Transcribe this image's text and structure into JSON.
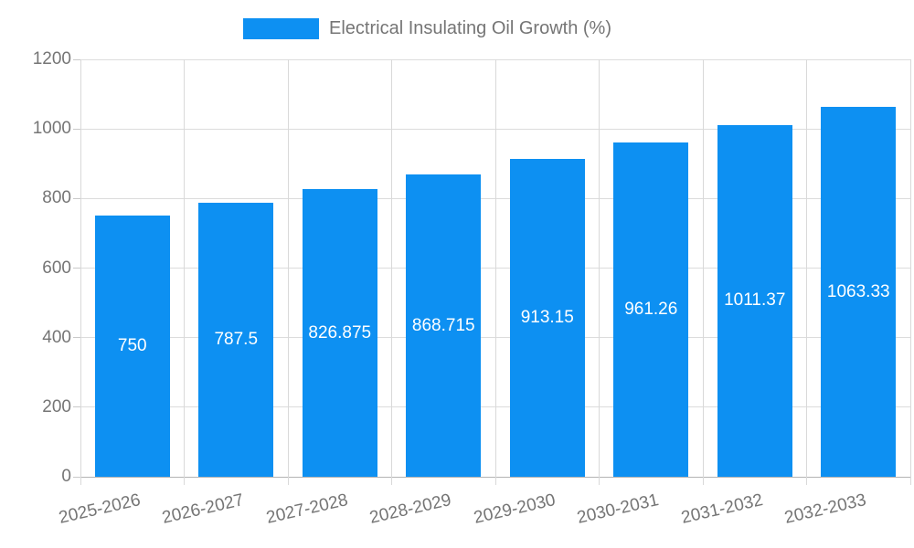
{
  "chart_data": {
    "type": "bar",
    "title": "",
    "legend": {
      "label": "Electrical Insulating Oil Growth (%)",
      "position": "top"
    },
    "categories": [
      "2025-2026",
      "2026-2027",
      "2027-2028",
      "2028-2029",
      "2029-2030",
      "2030-2031",
      "2031-2032",
      "2032-2033"
    ],
    "values": [
      750,
      787.5,
      826.875,
      868.715,
      913.15,
      961.26,
      1011.37,
      1063.33
    ],
    "value_labels": [
      "750",
      "787.5",
      "826.875",
      "868.715",
      "913.15",
      "961.26",
      "1011.37",
      "1063.33"
    ],
    "xlabel": "",
    "ylabel": "",
    "ylim": [
      0,
      1200
    ],
    "yticks": [
      0,
      200,
      400,
      600,
      800,
      1000,
      1200
    ],
    "grid": true,
    "colors": {
      "bar": "#0d90f2",
      "axis_text": "#757575",
      "value_label_text": "#ffffff",
      "gridline": "#dcdcdc",
      "baseline": "#b3b3b3"
    }
  }
}
